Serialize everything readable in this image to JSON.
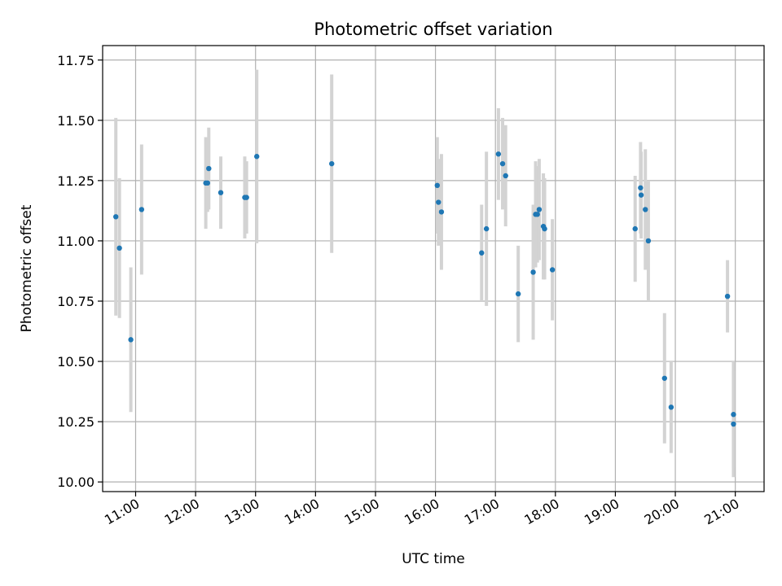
{
  "chart_data": {
    "type": "scatter",
    "title": "Photometric offset variation",
    "xlabel": "UTC time",
    "ylabel": "Photometric offset",
    "x_unit": "hours UTC",
    "xlim": [
      10.45,
      21.48
    ],
    "ylim": [
      9.96,
      11.81
    ],
    "x_ticks": [
      11,
      12,
      13,
      14,
      15,
      16,
      17,
      18,
      19,
      20,
      21
    ],
    "x_tick_labels": [
      "11:00",
      "12:00",
      "13:00",
      "14:00",
      "15:00",
      "16:00",
      "17:00",
      "18:00",
      "19:00",
      "20:00",
      "21:00"
    ],
    "y_ticks": [
      10.0,
      10.25,
      10.5,
      10.75,
      11.0,
      11.25,
      11.5,
      11.75
    ],
    "y_tick_labels": [
      "10.00",
      "10.25",
      "10.50",
      "10.75",
      "11.00",
      "11.25",
      "11.50",
      "11.75"
    ],
    "grid": true,
    "colors": {
      "points": "#1f77b4",
      "errorbars": "#d3d3d3",
      "grid": "#b0b0b0"
    },
    "series": [
      {
        "points": [
          {
            "x": 10.67,
            "y": 11.1,
            "err": 0.41
          },
          {
            "x": 10.73,
            "y": 10.97,
            "err": 0.29
          },
          {
            "x": 10.92,
            "y": 10.59,
            "err": 0.3
          },
          {
            "x": 11.1,
            "y": 11.13,
            "err": 0.27
          },
          {
            "x": 12.17,
            "y": 11.24,
            "err": 0.19
          },
          {
            "x": 12.2,
            "y": 11.24,
            "err": 0.12
          },
          {
            "x": 12.22,
            "y": 11.3,
            "err": 0.17
          },
          {
            "x": 12.42,
            "y": 11.2,
            "err": 0.15
          },
          {
            "x": 12.82,
            "y": 11.18,
            "err": 0.17
          },
          {
            "x": 12.85,
            "y": 11.18,
            "err": 0.15
          },
          {
            "x": 13.02,
            "y": 11.35,
            "err": 0.36
          },
          {
            "x": 14.27,
            "y": 11.32,
            "err": 0.37
          },
          {
            "x": 16.03,
            "y": 11.23,
            "err": 0.2
          },
          {
            "x": 16.05,
            "y": 11.16,
            "err": 0.18
          },
          {
            "x": 16.1,
            "y": 11.12,
            "err": 0.24
          },
          {
            "x": 16.77,
            "y": 10.95,
            "err": 0.2
          },
          {
            "x": 16.85,
            "y": 11.05,
            "err": 0.32
          },
          {
            "x": 17.05,
            "y": 11.36,
            "err": 0.19
          },
          {
            "x": 17.12,
            "y": 11.32,
            "err": 0.19
          },
          {
            "x": 17.17,
            "y": 11.27,
            "err": 0.21
          },
          {
            "x": 17.38,
            "y": 10.78,
            "err": 0.2
          },
          {
            "x": 17.63,
            "y": 10.87,
            "err": 0.28
          },
          {
            "x": 17.67,
            "y": 11.11,
            "err": 0.22
          },
          {
            "x": 17.7,
            "y": 11.11,
            "err": 0.2
          },
          {
            "x": 17.73,
            "y": 11.13,
            "err": 0.21
          },
          {
            "x": 17.8,
            "y": 11.06,
            "err": 0.22
          },
          {
            "x": 17.82,
            "y": 11.05,
            "err": 0.21
          },
          {
            "x": 17.95,
            "y": 10.88,
            "err": 0.21
          },
          {
            "x": 19.33,
            "y": 11.05,
            "err": 0.22
          },
          {
            "x": 19.42,
            "y": 11.22,
            "err": 0.19
          },
          {
            "x": 19.43,
            "y": 11.19,
            "err": 0.18
          },
          {
            "x": 19.5,
            "y": 11.13,
            "err": 0.25
          },
          {
            "x": 19.55,
            "y": 11.0,
            "err": 0.25
          },
          {
            "x": 19.82,
            "y": 10.43,
            "err": 0.27
          },
          {
            "x": 19.93,
            "y": 10.31,
            "err": 0.19
          },
          {
            "x": 20.87,
            "y": 10.77,
            "err": 0.15
          },
          {
            "x": 20.97,
            "y": 10.28,
            "err": 0.22
          },
          {
            "x": 20.97,
            "y": 10.24,
            "err": 0.22
          }
        ]
      }
    ]
  }
}
